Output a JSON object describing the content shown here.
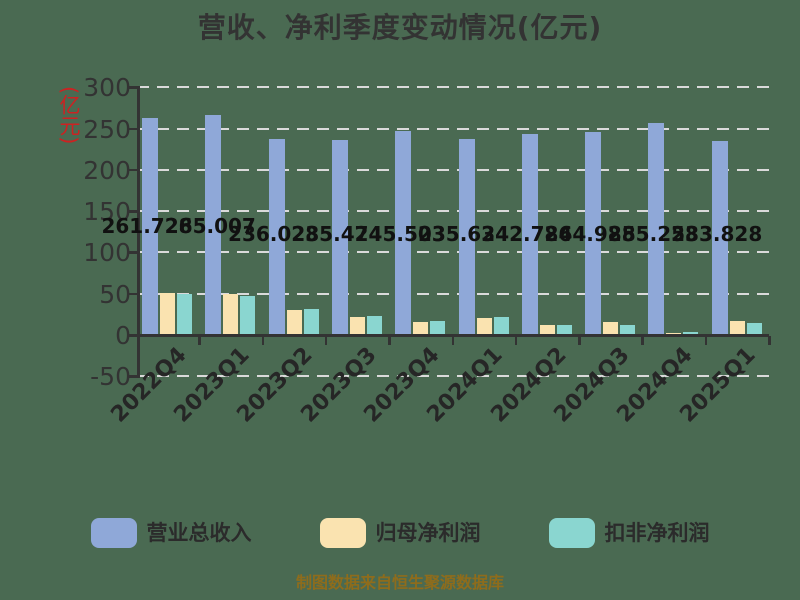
{
  "title": "营收、净利季度变动情况(亿元)",
  "y_axis": {
    "unit_label": "(亿元)",
    "ticks": [
      300,
      250,
      200,
      150,
      100,
      50,
      0,
      -50
    ],
    "min": -50,
    "max": 300
  },
  "chart_data": {
    "type": "bar",
    "title": "营收、净利季度变动情况(亿元)",
    "categories": [
      "2022Q4",
      "2023Q1",
      "2023Q2",
      "2023Q3",
      "2023Q4",
      "2024Q1",
      "2024Q2",
      "2024Q3",
      "2024Q4",
      "2025Q1"
    ],
    "series": [
      {
        "name": "营业总收入",
        "color": "#8FA8D8",
        "values": [
          261.728,
          265.007,
          236.028,
          235.474,
          245.503,
          235.634,
          242.786,
          244.988,
          255.258,
          233.828
        ]
      },
      {
        "name": "归母净利润",
        "color": "#FAE3B0",
        "values": [
          50,
          49,
          29.5,
          20,
          15,
          19.5,
          10.5,
          14,
          1,
          16
        ]
      },
      {
        "name": "扣非净利润",
        "color": "#8AD6D0",
        "values": [
          48.5,
          45.5,
          30,
          22,
          16,
          21,
          11.5,
          10.5,
          2,
          13.5
        ]
      }
    ],
    "bar_labels": [
      "261.728",
      "265.007",
      "236.028",
      "235.474",
      "245.503",
      "235.634",
      "242.786",
      "244.988",
      "255.258",
      "233.828"
    ],
    "ylim": [
      -50,
      300
    ],
    "yticks": [
      300,
      250,
      200,
      150,
      100,
      50,
      0,
      -50
    ],
    "grid": "dashed horizontal gridlines",
    "legend_position": "bottom"
  },
  "legend": {
    "items": [
      {
        "label": "营业总收入",
        "color": "#8FA8D8"
      },
      {
        "label": "归母净利润",
        "color": "#FAE3B0"
      },
      {
        "label": "扣非净利润",
        "color": "#8AD6D0"
      }
    ]
  },
  "footer": {
    "text": "制图数据来自恒生聚源数据库"
  },
  "colors": {
    "background": "#4A6A52",
    "title_text": "#333333",
    "axis": "#333333",
    "gridline": "#DADADA",
    "y_unit_label": "#CC2222",
    "bar_value_label": "#111111",
    "footer_text": "#8E6C1C",
    "revenue_bar": "#8FA8D8",
    "net_profit_bar": "#FAE3B0",
    "non_gaap_bar": "#8AD6D0"
  }
}
